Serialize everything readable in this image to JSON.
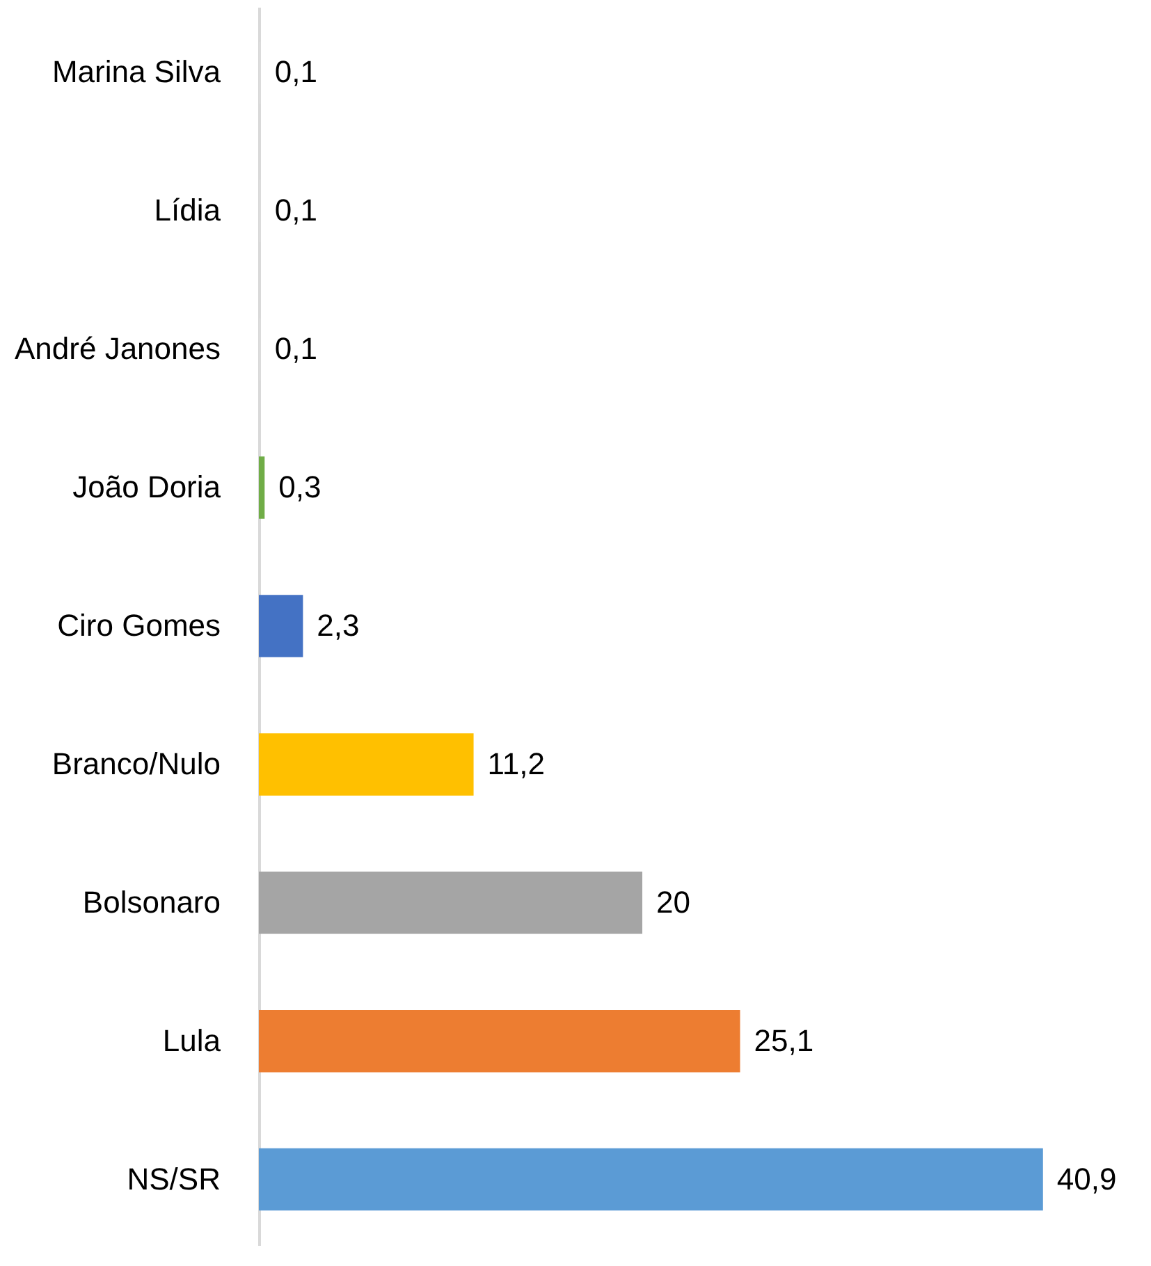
{
  "chart_data": {
    "type": "bar",
    "orientation": "horizontal",
    "categories": [
      "Marina Silva",
      "Lídia",
      "André Janones",
      "João Doria",
      "Ciro Gomes",
      "Branco/Nulo",
      "Bolsonaro",
      "Lula",
      "NS/SR"
    ],
    "values": [
      0.1,
      0.1,
      0.1,
      0.3,
      2.3,
      11.2,
      20,
      25.1,
      40.9
    ],
    "value_labels": [
      "0,1",
      "0,1",
      "0,1",
      "0,3",
      "2,3",
      "11,2",
      "20",
      "25,1",
      "40,9"
    ],
    "colors": [
      "#dcdcdc",
      "#dcdcdc",
      "#dcdcdc",
      "#70ad47",
      "#4472c4",
      "#ffc000",
      "#a5a5a5",
      "#ed7d31",
      "#5b9bd5"
    ],
    "grid": false
  }
}
